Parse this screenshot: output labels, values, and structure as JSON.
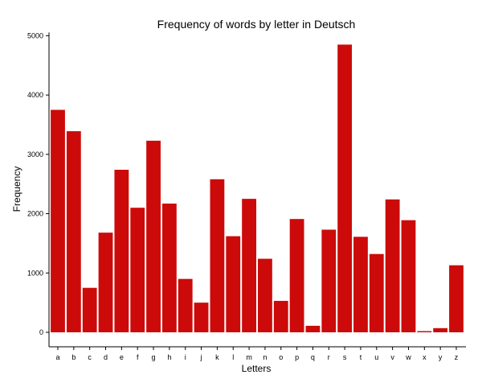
{
  "chart_data": {
    "type": "bar",
    "title": "Frequency of words by letter in Deutsch",
    "xlabel": "Letters",
    "ylabel": "Frequency",
    "categories": [
      "a",
      "b",
      "c",
      "d",
      "e",
      "f",
      "g",
      "h",
      "i",
      "j",
      "k",
      "l",
      "m",
      "n",
      "o",
      "p",
      "q",
      "r",
      "s",
      "t",
      "u",
      "v",
      "w",
      "x",
      "y",
      "z"
    ],
    "values": [
      3750,
      3390,
      750,
      1680,
      2740,
      2100,
      3230,
      2170,
      900,
      500,
      2580,
      1620,
      2250,
      1240,
      530,
      1910,
      110,
      1730,
      4850,
      1610,
      1320,
      2240,
      1890,
      20,
      70,
      1130
    ],
    "ylim": [
      0,
      5100
    ],
    "yticks": [
      0,
      1000,
      2000,
      3000,
      4000,
      5000
    ],
    "bar_color": "#cc0a0a",
    "grid": false,
    "legend": "none"
  }
}
